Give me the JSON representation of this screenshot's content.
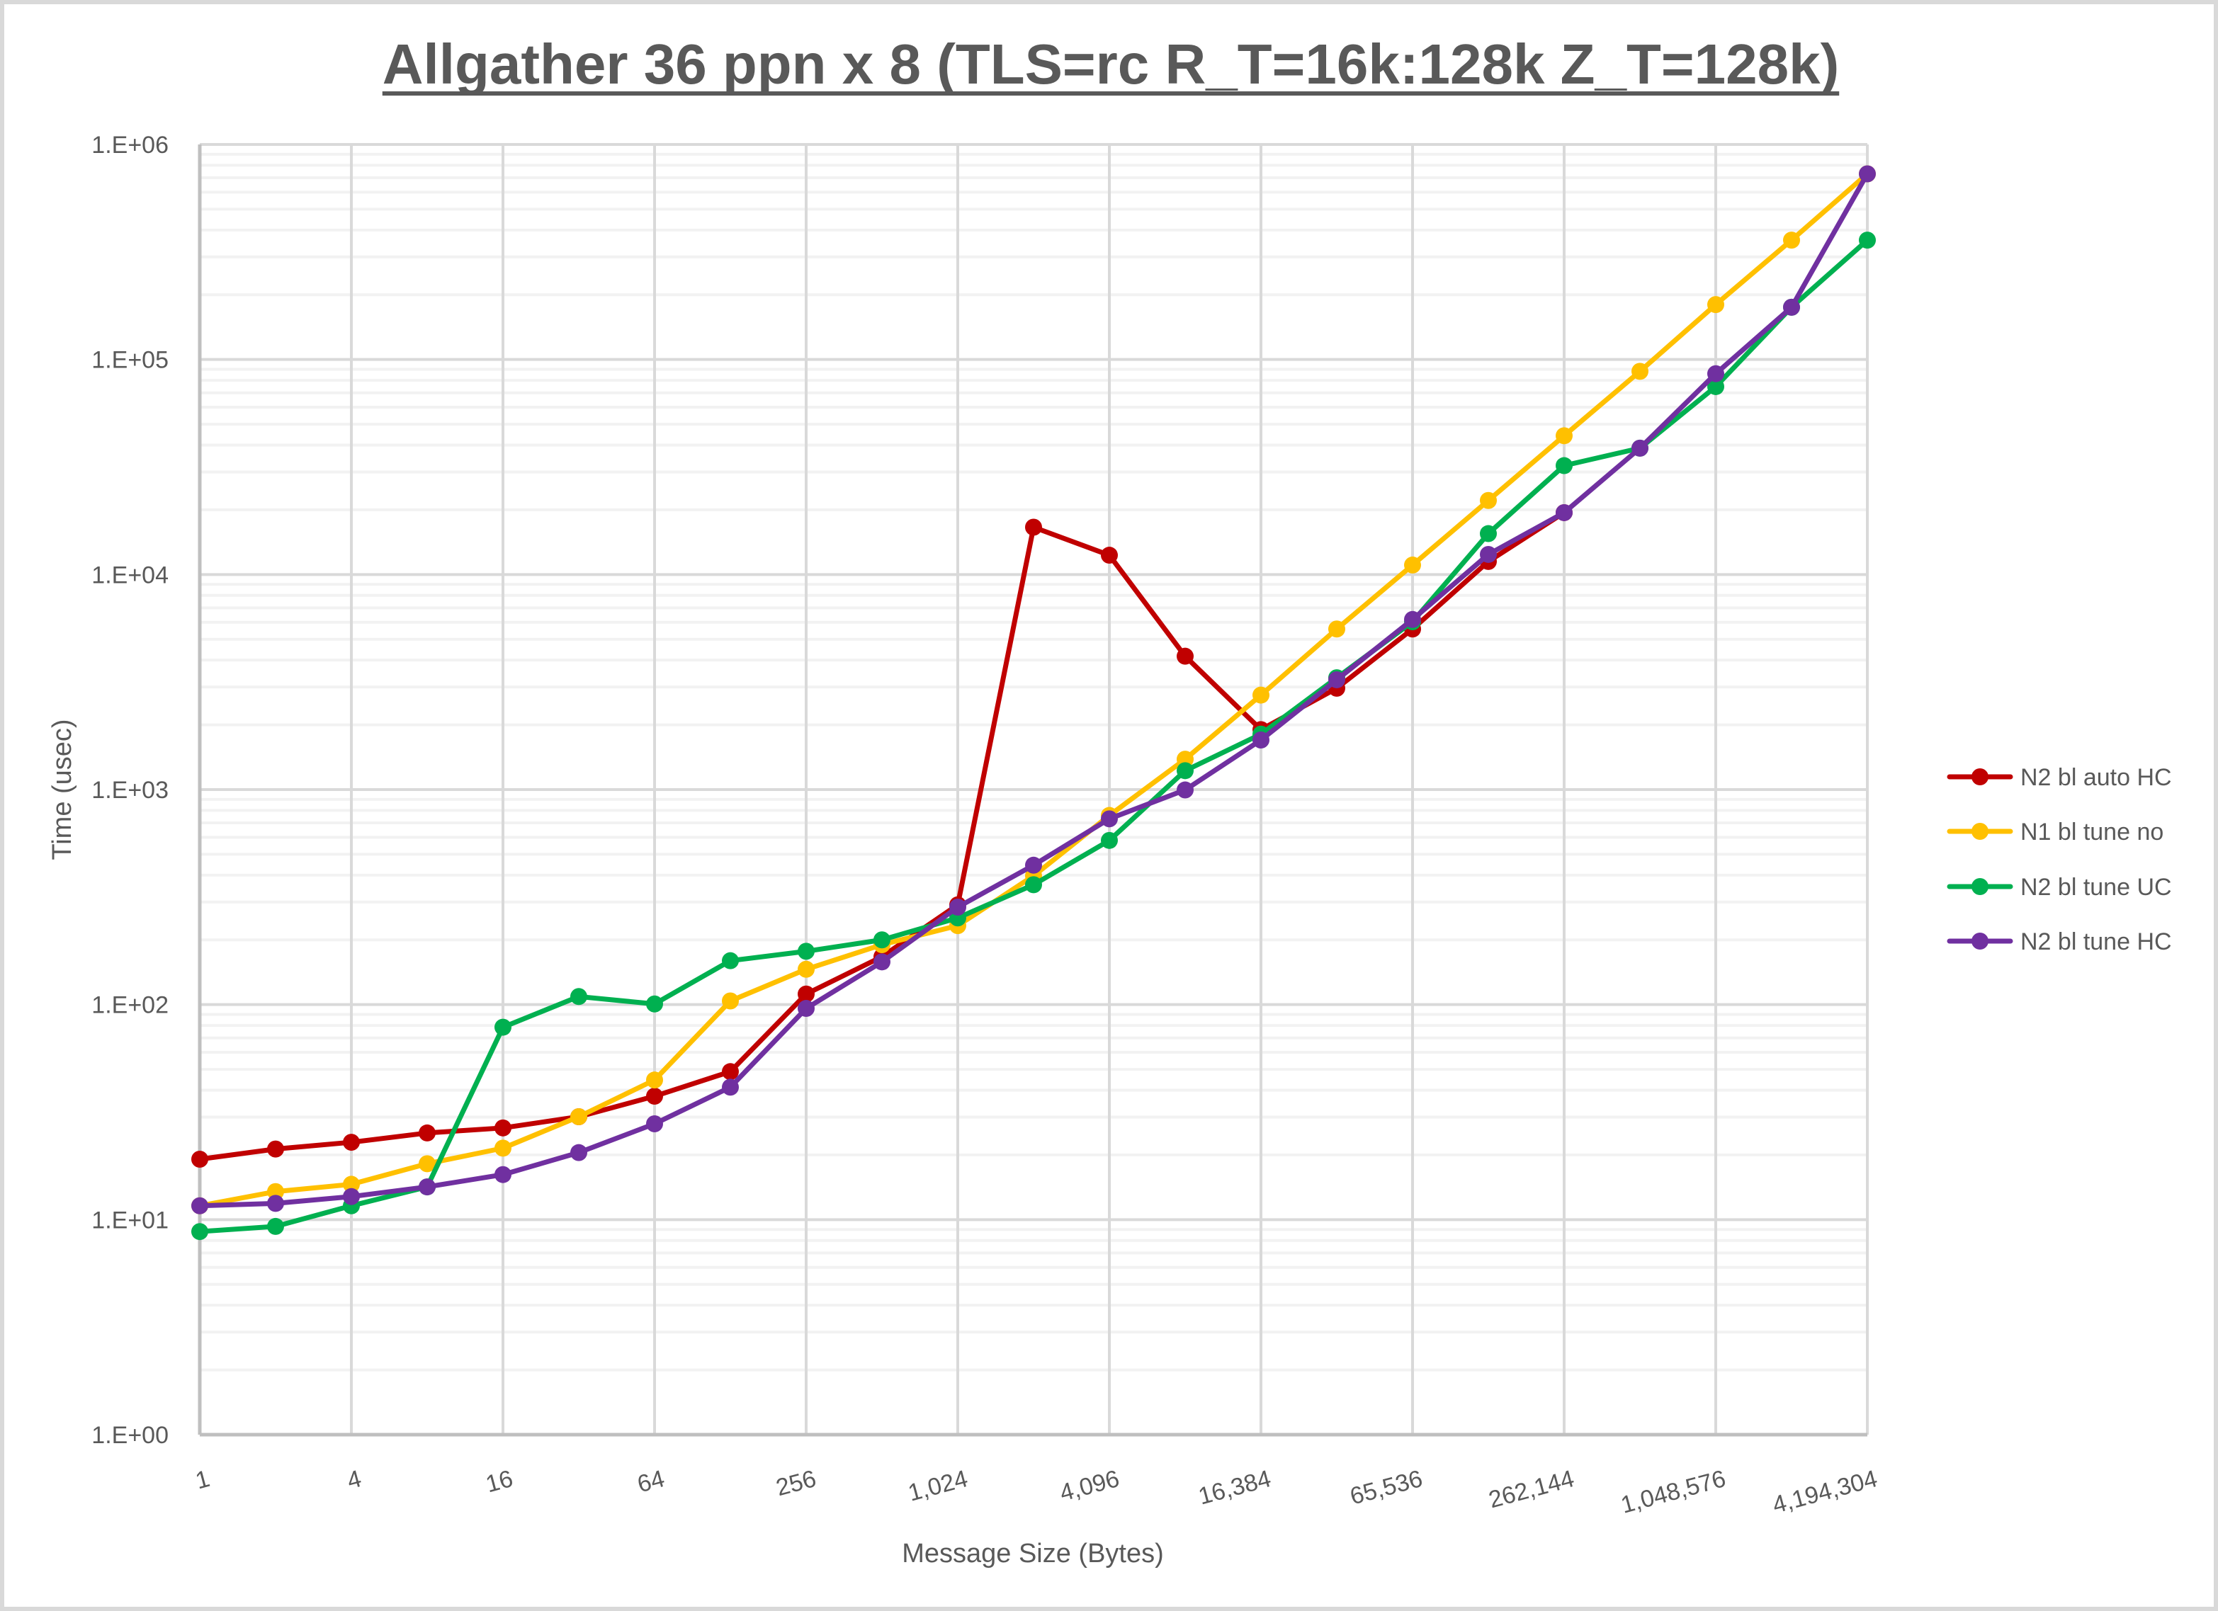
{
  "chart_data": {
    "type": "line",
    "title": "Allgather 36 ppn x 8 (TLS=rc R_T=16k:128k Z_T=128k)",
    "xlabel": "Message Size (Bytes)",
    "ylabel": "Time (usec)",
    "xscale": "log2",
    "yscale": "log10",
    "ylim": [
      1,
      1000000
    ],
    "y_tick_labels": [
      "1.E+00",
      "1.E+01",
      "1.E+02",
      "1.E+03",
      "1.E+04",
      "1.E+05",
      "1.E+06"
    ],
    "x": [
      1,
      2,
      4,
      8,
      16,
      32,
      64,
      128,
      256,
      512,
      1024,
      2048,
      4096,
      8192,
      16384,
      32768,
      65536,
      131072,
      262144,
      524288,
      1048576,
      2097152,
      4194304
    ],
    "x_tick_labels": [
      "1",
      "4",
      "16",
      "64",
      "256",
      "1,024",
      "4,096",
      "16,384",
      "65,536",
      "262,144",
      "1,048,576",
      "4,194,304"
    ],
    "grid": true,
    "legend_position": "right",
    "series": [
      {
        "name": "N2 bl auto HC",
        "color": "#c00000",
        "values": [
          19.1,
          21.3,
          22.9,
          25.3,
          26.7,
          30.1,
          37.5,
          48.8,
          112,
          167,
          291,
          16600,
          12300,
          4170,
          1900,
          2960,
          5580,
          11500,
          19400,
          null,
          null,
          null,
          null
        ]
      },
      {
        "name": "N1 bl tune no",
        "color": "#ffc000",
        "values": [
          11.6,
          13.5,
          14.6,
          18.2,
          21.5,
          30.1,
          44.6,
          104,
          146,
          190,
          233,
          397,
          758,
          1384,
          2750,
          5580,
          11070,
          22100,
          44200,
          88100,
          180000,
          359000,
          730000
        ]
      },
      {
        "name": "N2 bl tune UC",
        "color": "#00b050",
        "values": [
          8.8,
          9.3,
          11.6,
          14.2,
          78.5,
          109,
          100.7,
          160,
          177,
          200,
          253,
          361,
          580,
          1224,
          1810,
          3310,
          6030,
          15500,
          32100,
          38700,
          74800,
          175000,
          359000
        ]
      },
      {
        "name": "N2 bl tune HC",
        "color": "#7030a0",
        "values": [
          11.6,
          11.9,
          12.8,
          14.2,
          16.2,
          20.5,
          27.9,
          41.3,
          96,
          158,
          284,
          445,
          731,
          996,
          1700,
          3240,
          6180,
          12400,
          19400,
          38700,
          85900,
          175000,
          730000
        ]
      }
    ]
  },
  "legend": {
    "items": [
      {
        "label": "N2 bl auto HC",
        "color": "#c00000"
      },
      {
        "label": "N1 bl tune no",
        "color": "#ffc000"
      },
      {
        "label": "N2 bl tune UC",
        "color": "#00b050"
      },
      {
        "label": "N2 bl tune HC",
        "color": "#7030a0"
      }
    ]
  },
  "colors": {
    "text": "#595959",
    "major_grid": "#d9d9d9",
    "minor_grid": "#f2f2f2",
    "axis_line": "#bfbfbf",
    "border": "#d9d9d9"
  }
}
